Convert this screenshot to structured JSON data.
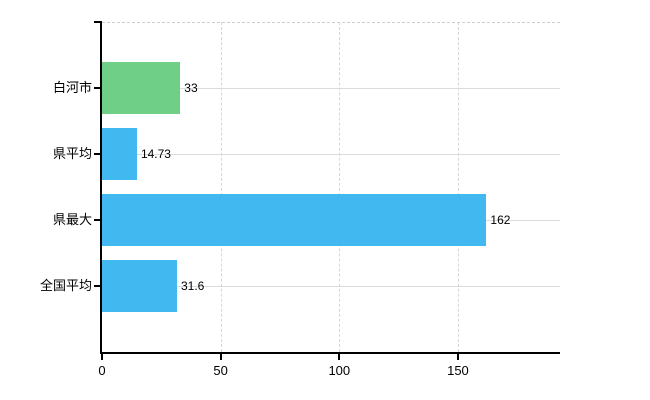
{
  "chart_data": {
    "type": "bar",
    "orientation": "horizontal",
    "title": "",
    "xlabel": "",
    "ylabel": "",
    "categories": [
      "白河市",
      "県平均",
      "県最大",
      "全国平均"
    ],
    "values": [
      33,
      14.73,
      162,
      31.6
    ],
    "value_labels": [
      "33",
      "14.73",
      "162",
      "31.6"
    ],
    "bar_colors": [
      "#6fcf87",
      "#41b8f0",
      "#41b8f0",
      "#41b8f0"
    ],
    "x_ticks": [
      0,
      50,
      100,
      150
    ],
    "x_tick_labels": [
      "0",
      "50",
      "100",
      "150"
    ],
    "xlim": [
      0,
      193
    ],
    "grid": true,
    "legend": "none"
  },
  "colors": {
    "background": "#ffffff",
    "axis": "#000000",
    "horizontal_grid": "#d9ddd8",
    "vertical_grid": "#d6d6d6",
    "top_border": "#cfcfcf",
    "green_bar": "#6fcf87",
    "blue_bar": "#41b8f0",
    "text": "#000000"
  }
}
